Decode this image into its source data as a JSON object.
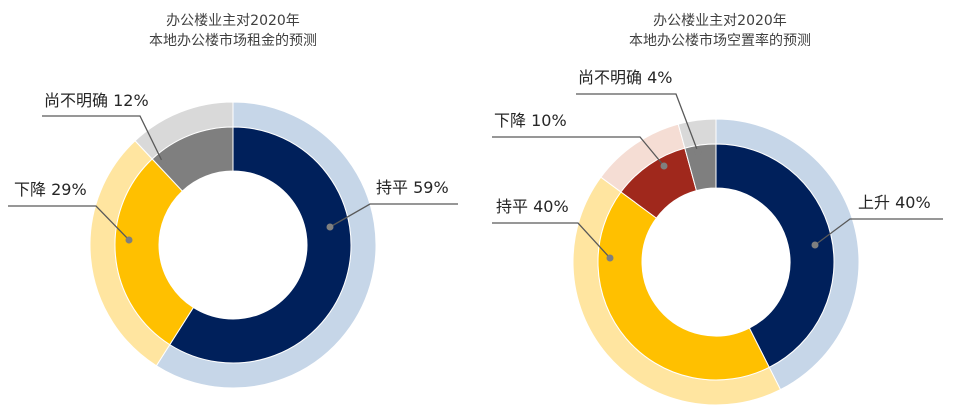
{
  "chart_data": [
    {
      "type": "pie",
      "title": [
        "办公楼业主对2020年",
        "本地办公楼市场租金的预测"
      ],
      "categories": [
        "持平",
        "下降",
        "尚不明确"
      ],
      "values": [
        59,
        29,
        12
      ],
      "labels": [
        "持平 59%",
        "下降 29%",
        "尚不明确 12%"
      ],
      "colors": [
        "#00205B",
        "#FFC000",
        "#7F7F7F"
      ],
      "outer_colors": [
        "#C6D6E8",
        "#FFE5A0",
        "#D9D9D9"
      ]
    },
    {
      "type": "pie",
      "title": [
        "办公楼业主对2020年",
        "本地办公楼市场空置率的预测"
      ],
      "categories": [
        "上升",
        "持平",
        "下降",
        "尚不明确"
      ],
      "values": [
        40,
        40,
        10,
        4
      ],
      "labels": [
        "上升 40%",
        "持平 40%",
        "下降 10%",
        "尚不明确 4%"
      ],
      "colors": [
        "#00205B",
        "#FFC000",
        "#A0281C",
        "#7F7F7F"
      ],
      "outer_colors": [
        "#C6D6E8",
        "#FFE5A0",
        "#F5DDD4",
        "#D9D9D9"
      ]
    }
  ]
}
